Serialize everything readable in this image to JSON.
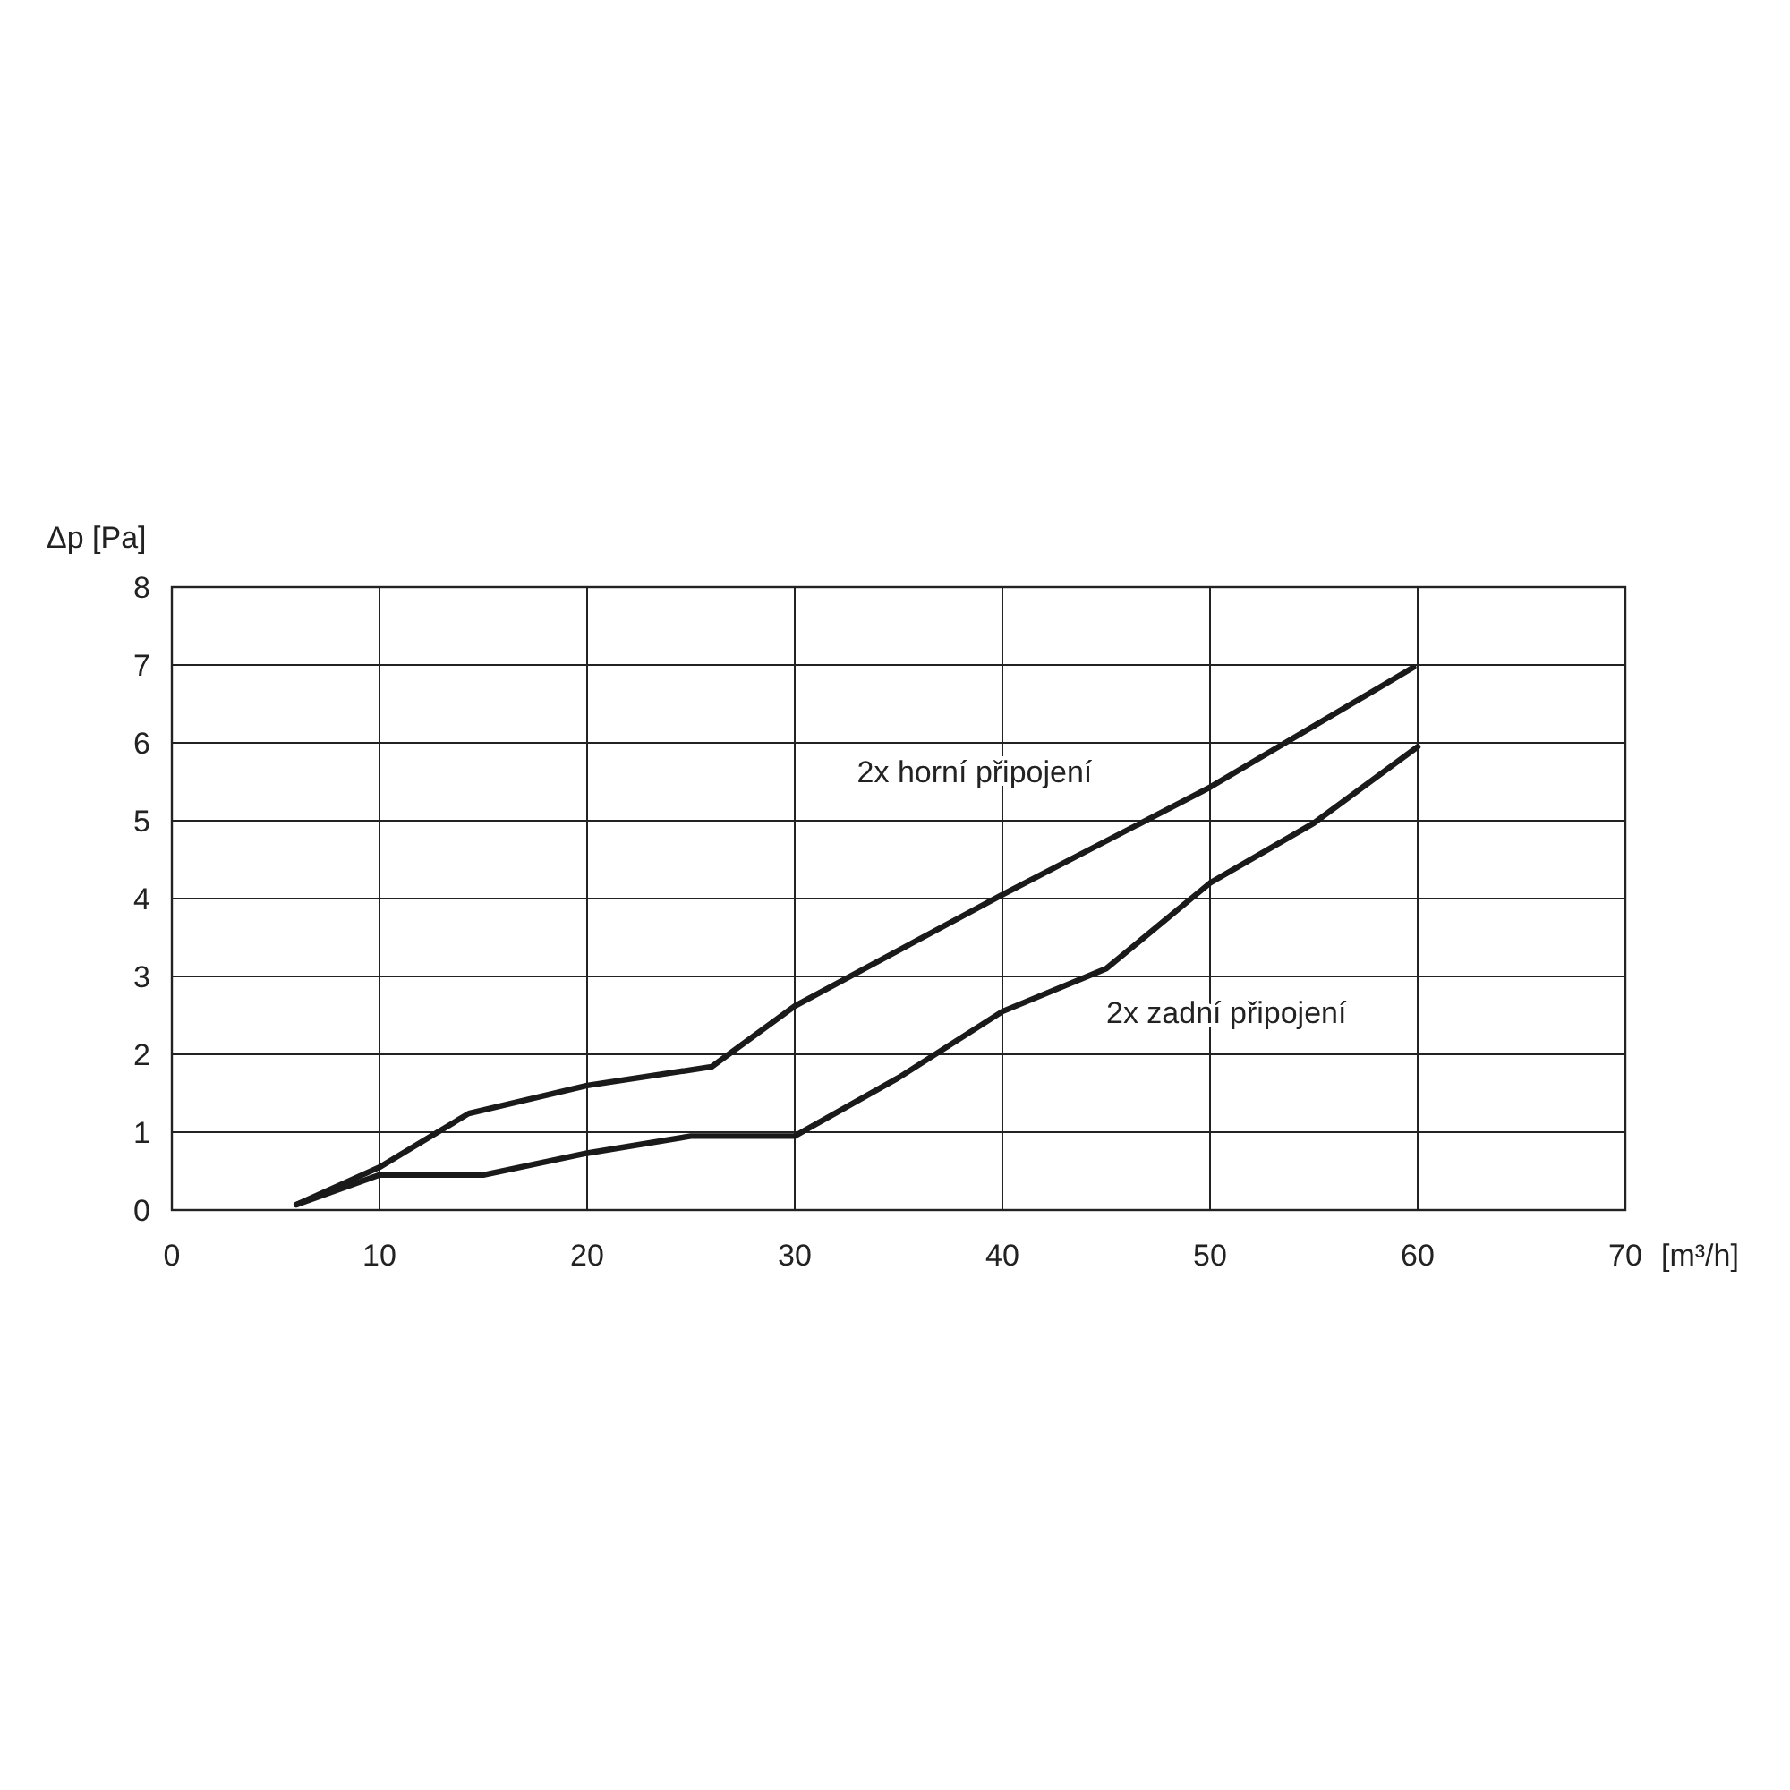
{
  "chart_data": {
    "type": "line",
    "xlabel": "[m³/h]",
    "ylabel": "Δp [Pa]",
    "xlim": [
      0,
      70
    ],
    "ylim": [
      0,
      8
    ],
    "xticks": [
      0,
      10,
      20,
      30,
      40,
      50,
      60,
      70
    ],
    "yticks": [
      0,
      1,
      2,
      3,
      4,
      5,
      6,
      7,
      8
    ],
    "grid": true,
    "marker": "none",
    "line_style": "solid",
    "series": [
      {
        "name": "2x horní připojení",
        "color": "#1a1a1a",
        "x": [
          6,
          10,
          14.3,
          20,
          26,
          30,
          40,
          50,
          59.8
        ],
        "values": [
          0.07,
          0.55,
          1.24,
          1.6,
          1.84,
          2.62,
          4.05,
          5.43,
          6.97
        ]
      },
      {
        "name": "2x zadní připojení",
        "color": "#1a1a1a",
        "x": [
          6,
          10,
          15,
          20,
          25,
          30,
          35,
          40,
          45,
          50,
          55,
          60
        ],
        "values": [
          0.07,
          0.45,
          0.45,
          0.73,
          0.95,
          0.95,
          1.7,
          2.55,
          3.1,
          4.2,
          4.97,
          5.95
        ]
      }
    ]
  }
}
